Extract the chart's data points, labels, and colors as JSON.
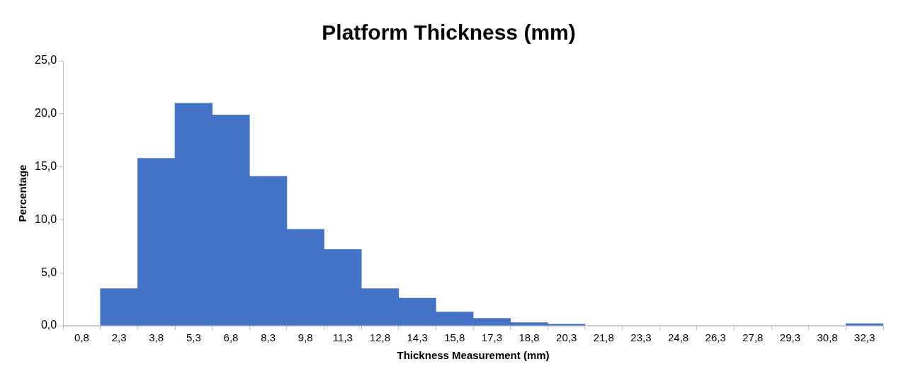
{
  "chart_data": {
    "type": "bar",
    "title": "Platform Thickness (mm)",
    "xlabel": "Thickness Measurement (mm)",
    "ylabel": "Percentage",
    "categories": [
      "0,8",
      "2,3",
      "3,8",
      "5,3",
      "6,8",
      "8,3",
      "9,8",
      "11,3",
      "12,8",
      "14,3",
      "15,8",
      "17,3",
      "18,8",
      "20,3",
      "21,8",
      "23,3",
      "24,8",
      "26,3",
      "27,8",
      "29,3",
      "30,8",
      "32,3"
    ],
    "values": [
      0,
      3.5,
      15.8,
      21.0,
      19.9,
      14.1,
      9.1,
      7.2,
      3.5,
      2.6,
      1.3,
      0.7,
      0.3,
      0.15,
      0,
      0,
      0,
      0,
      0,
      0,
      0,
      0.2
    ],
    "color": "#4472c4",
    "ylim": [
      0,
      25
    ],
    "yticks": [
      {
        "value": 0,
        "label": "0,0"
      },
      {
        "value": 5,
        "label": "5,0"
      },
      {
        "value": 10,
        "label": "10,0"
      },
      {
        "value": 15,
        "label": "15,0"
      },
      {
        "value": 20,
        "label": "20,0"
      },
      {
        "value": 25,
        "label": "25,0"
      }
    ],
    "grid": false
  }
}
